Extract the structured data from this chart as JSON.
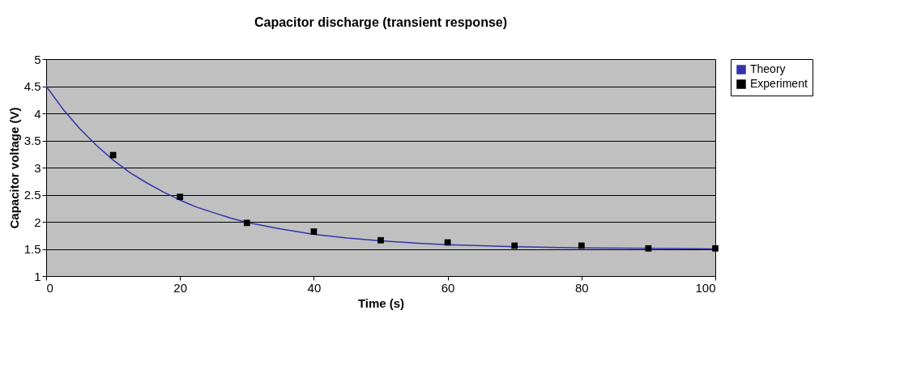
{
  "chart_data": {
    "type": "line",
    "title": "Capacitor discharge (transient response)",
    "xlabel": "Time (s)",
    "ylabel": "Capacitor voltage (V)",
    "xlim": [
      0,
      100
    ],
    "xticks": [
      0,
      20,
      40,
      60,
      80,
      100
    ],
    "ylim": [
      1,
      5
    ],
    "yticks": [
      1,
      1.5,
      2,
      2.5,
      3,
      3.5,
      4,
      4.5,
      5
    ],
    "grid": "y",
    "legend": "right",
    "series": [
      {
        "name": "Theory",
        "color": "#3333aa",
        "marker": "none",
        "x": [
          0,
          2.5,
          5,
          7.5,
          10,
          12.5,
          15,
          17.5,
          20,
          22.5,
          25,
          27.5,
          30,
          35,
          40,
          45,
          50,
          55,
          60,
          65,
          70,
          80,
          90,
          100
        ],
        "values": [
          4.5,
          4.08,
          3.72,
          3.41,
          3.14,
          2.91,
          2.72,
          2.55,
          2.4,
          2.27,
          2.17,
          2.07,
          1.99,
          1.87,
          1.77,
          1.7,
          1.65,
          1.61,
          1.58,
          1.56,
          1.54,
          1.52,
          1.51,
          1.5
        ]
      },
      {
        "name": "Experiment",
        "color": "#000000",
        "type": "scatter",
        "marker": "square",
        "x": [
          10,
          20,
          30,
          40,
          50,
          60,
          70,
          80,
          90,
          100
        ],
        "values": [
          3.23,
          2.46,
          1.98,
          1.82,
          1.66,
          1.62,
          1.56,
          1.56,
          1.51,
          1.51
        ]
      }
    ]
  }
}
